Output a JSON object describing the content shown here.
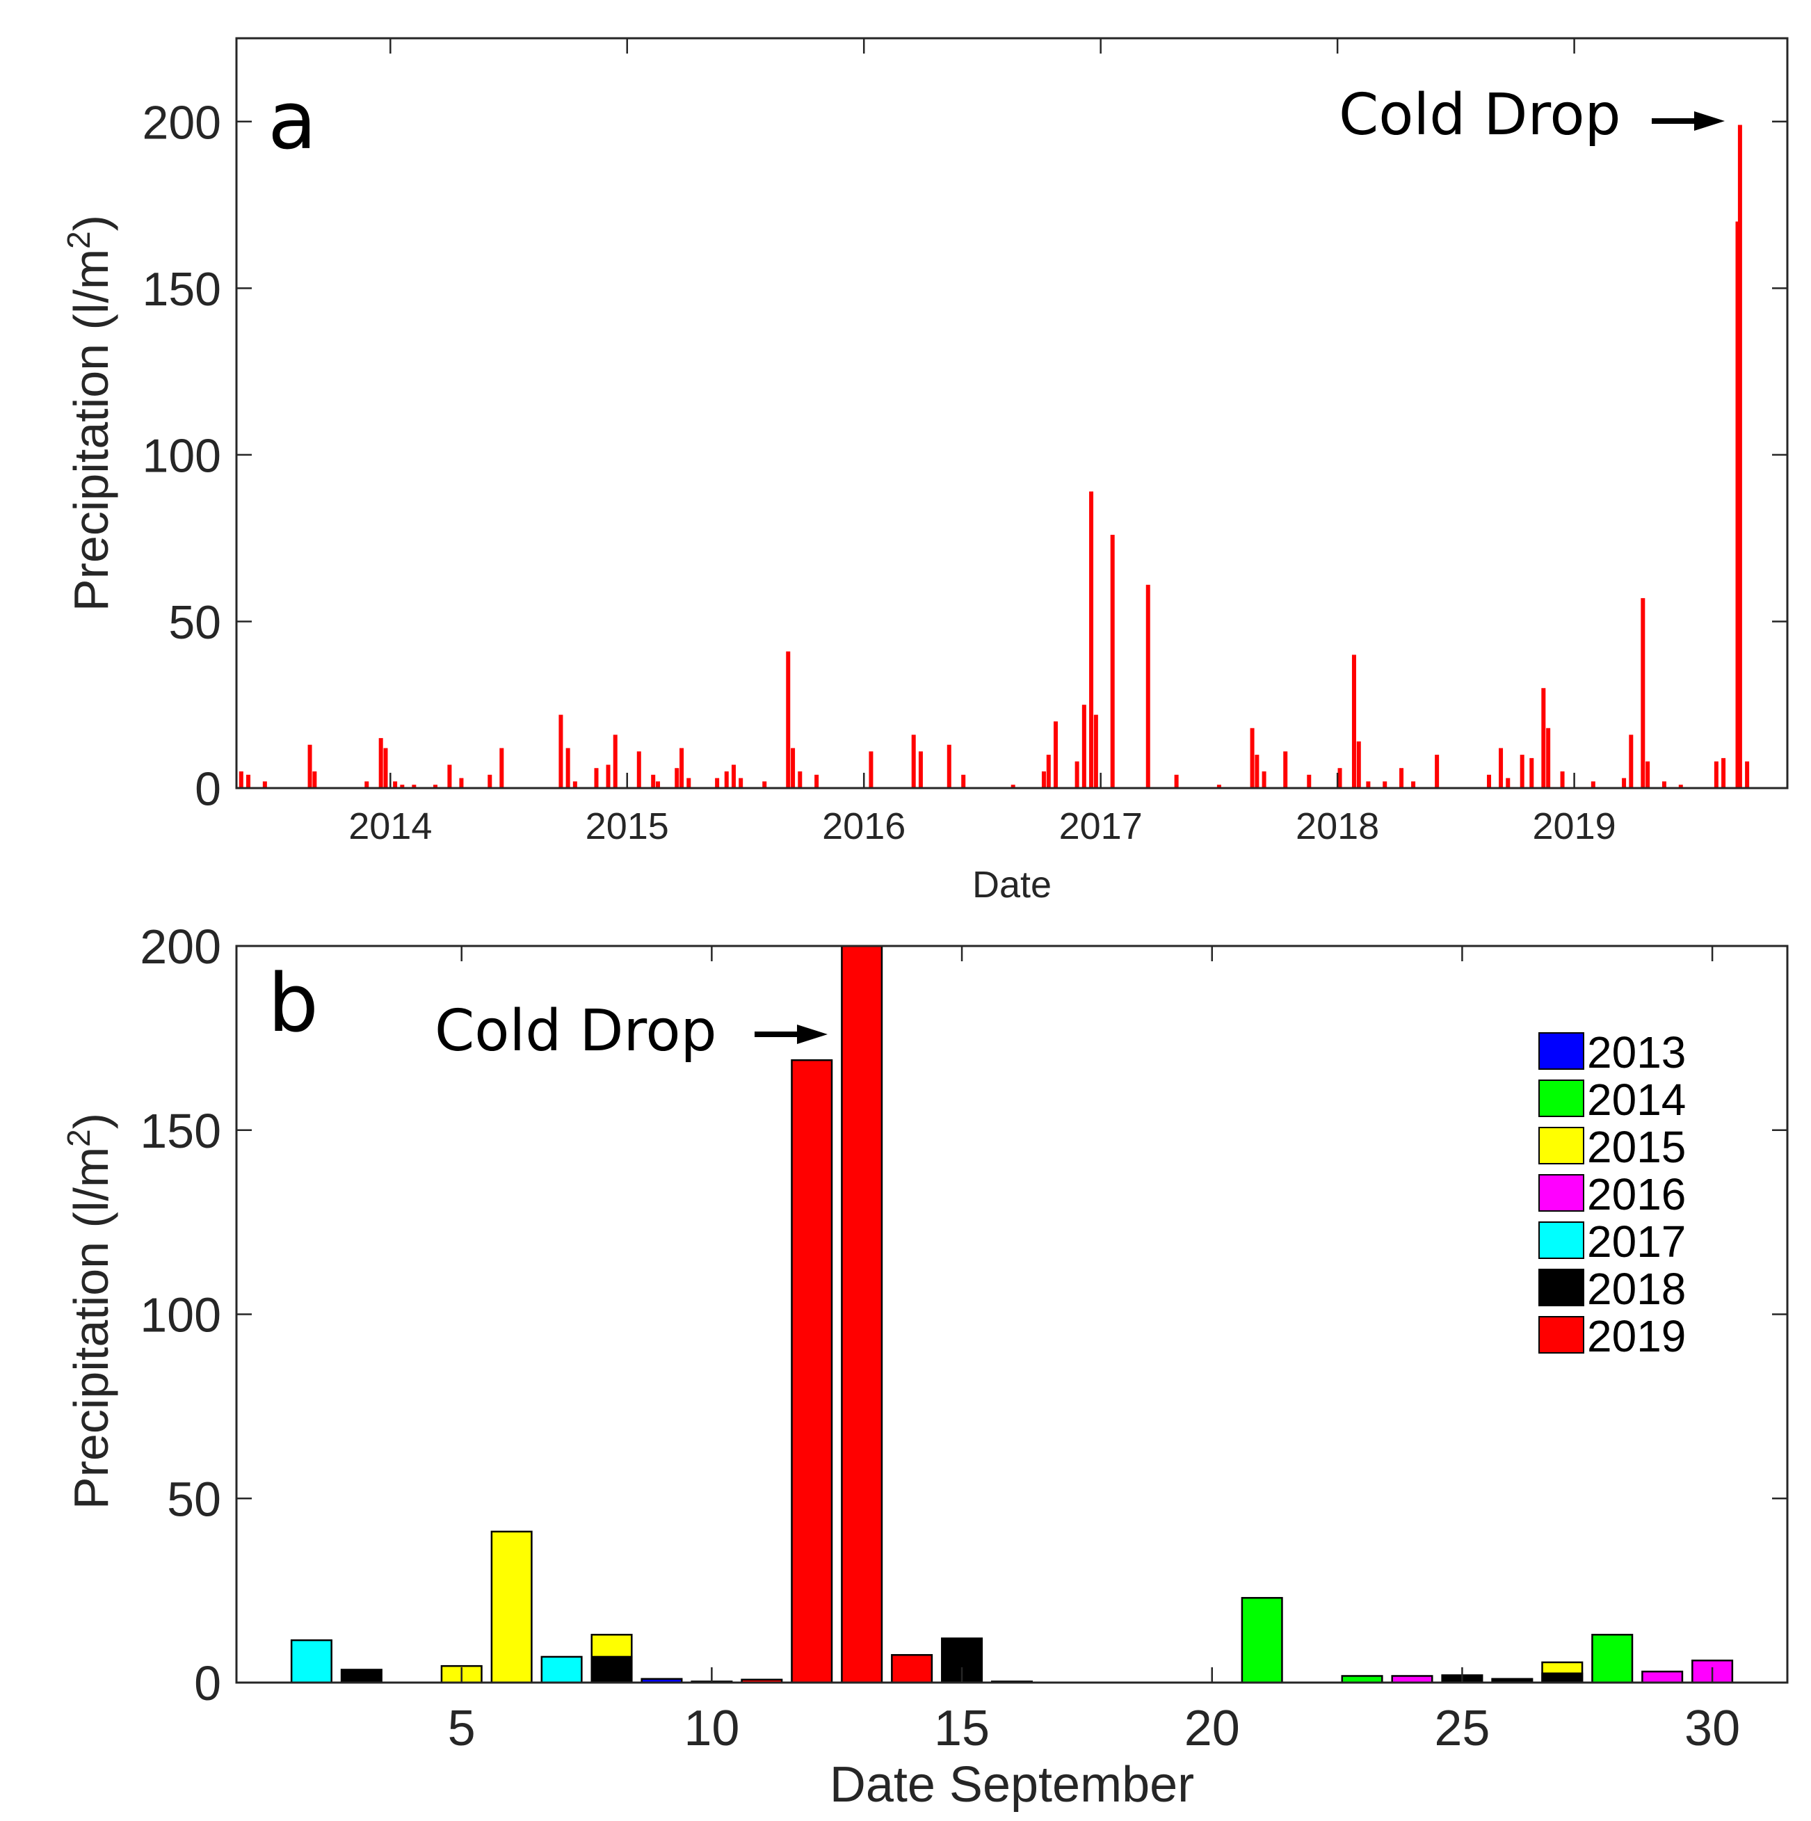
{
  "chart_data": [
    {
      "panel": "a",
      "type": "bar",
      "title": "",
      "xlabel": "Date",
      "ylabel": "Precipitation (l/m2)",
      "ylabel_main": "Precipitation (l/m",
      "ylabel_sup": "2",
      "ylabel_close": ")",
      "ylim": [
        0,
        225
      ],
      "xlim": [
        2013.35,
        2019.9
      ],
      "xticks": [
        2014,
        2015,
        2016,
        2017,
        2018,
        2019
      ],
      "xtick_labels": [
        "2014",
        "2015",
        "2016",
        "2017",
        "2018",
        "2019"
      ],
      "yticks": [
        0,
        50,
        100,
        150,
        200
      ],
      "ytick_labels": [
        "0",
        "50",
        "100",
        "150",
        "200"
      ],
      "series_color": "#ff0000",
      "annotation": "Cold Drop",
      "annotation_target": {
        "x": 2019.72,
        "y": 199
      },
      "points": [
        [
          2013.37,
          5
        ],
        [
          2013.4,
          4
        ],
        [
          2013.47,
          2
        ],
        [
          2013.66,
          13
        ],
        [
          2013.68,
          5
        ],
        [
          2013.9,
          2
        ],
        [
          2013.96,
          15
        ],
        [
          2013.98,
          12
        ],
        [
          2014.02,
          2
        ],
        [
          2014.05,
          1
        ],
        [
          2014.1,
          1
        ],
        [
          2014.19,
          1
        ],
        [
          2014.25,
          7
        ],
        [
          2014.3,
          3
        ],
        [
          2014.42,
          4
        ],
        [
          2014.47,
          12
        ],
        [
          2014.72,
          22
        ],
        [
          2014.75,
          12
        ],
        [
          2014.78,
          2
        ],
        [
          2014.87,
          6
        ],
        [
          2014.92,
          7
        ],
        [
          2014.95,
          16
        ],
        [
          2015.05,
          11
        ],
        [
          2015.11,
          4
        ],
        [
          2015.13,
          2
        ],
        [
          2015.21,
          6
        ],
        [
          2015.23,
          12
        ],
        [
          2015.26,
          3
        ],
        [
          2015.38,
          3
        ],
        [
          2015.42,
          5
        ],
        [
          2015.45,
          7
        ],
        [
          2015.48,
          3
        ],
        [
          2015.58,
          2
        ],
        [
          2015.68,
          41
        ],
        [
          2015.7,
          12
        ],
        [
          2015.73,
          5
        ],
        [
          2015.8,
          4
        ],
        [
          2016.03,
          11
        ],
        [
          2016.21,
          16
        ],
        [
          2016.24,
          11
        ],
        [
          2016.36,
          13
        ],
        [
          2016.42,
          4
        ],
        [
          2016.63,
          1
        ],
        [
          2016.76,
          5
        ],
        [
          2016.78,
          10
        ],
        [
          2016.81,
          20
        ],
        [
          2016.9,
          8
        ],
        [
          2016.93,
          25
        ],
        [
          2016.96,
          89
        ],
        [
          2016.98,
          22
        ],
        [
          2017.05,
          76
        ],
        [
          2017.2,
          61
        ],
        [
          2017.32,
          4
        ],
        [
          2017.5,
          1
        ],
        [
          2017.64,
          18
        ],
        [
          2017.66,
          10
        ],
        [
          2017.69,
          5
        ],
        [
          2017.78,
          11
        ],
        [
          2017.88,
          4
        ],
        [
          2018.01,
          6
        ],
        [
          2018.07,
          40
        ],
        [
          2018.09,
          14
        ],
        [
          2018.13,
          2
        ],
        [
          2018.2,
          2
        ],
        [
          2018.27,
          6
        ],
        [
          2018.32,
          2
        ],
        [
          2018.42,
          10
        ],
        [
          2018.64,
          4
        ],
        [
          2018.69,
          12
        ],
        [
          2018.72,
          3
        ],
        [
          2018.78,
          10
        ],
        [
          2018.82,
          9
        ],
        [
          2018.87,
          30
        ],
        [
          2018.89,
          18
        ],
        [
          2018.95,
          5
        ],
        [
          2019.08,
          2
        ],
        [
          2019.21,
          3
        ],
        [
          2019.24,
          16
        ],
        [
          2019.29,
          57
        ],
        [
          2019.31,
          8
        ],
        [
          2019.38,
          2
        ],
        [
          2019.45,
          1
        ],
        [
          2019.6,
          8
        ],
        [
          2019.63,
          9
        ],
        [
          2019.69,
          170
        ],
        [
          2019.7,
          199
        ],
        [
          2019.73,
          8
        ]
      ]
    },
    {
      "panel": "b",
      "type": "bar",
      "title": "",
      "xlabel": "Date September",
      "ylabel": "Precipitation (l/m2)",
      "ylabel_main": "Precipitation (l/m",
      "ylabel_sup": "2",
      "ylabel_close": ")",
      "ylim": [
        0,
        200
      ],
      "xlim": [
        0.5,
        31.5
      ],
      "xticks": [
        5,
        10,
        15,
        20,
        25,
        30
      ],
      "xtick_labels": [
        "5",
        "10",
        "15",
        "20",
        "25",
        "30"
      ],
      "yticks": [
        0,
        50,
        100,
        150,
        200
      ],
      "ytick_labels": [
        "0",
        "50",
        "100",
        "150",
        "200"
      ],
      "annotation": "Cold Drop",
      "annotation_target": {
        "x": 12,
        "y": 177
      },
      "legend": [
        {
          "label": "2013",
          "color": "#0000ff"
        },
        {
          "label": "2014",
          "color": "#00ff00"
        },
        {
          "label": "2015",
          "color": "#ffff00"
        },
        {
          "label": "2016",
          "color": "#ff00ff"
        },
        {
          "label": "2017",
          "color": "#00ffff"
        },
        {
          "label": "2018",
          "color": "#000000"
        },
        {
          "label": "2019",
          "color": "#ff0000"
        }
      ],
      "bars": [
        {
          "day": 2,
          "year": "2017",
          "value": 11.5
        },
        {
          "day": 3,
          "year": "2018",
          "value": 3.5
        },
        {
          "day": 5,
          "year": "2015",
          "value": 4.5
        },
        {
          "day": 6,
          "year": "2015",
          "value": 41
        },
        {
          "day": 7,
          "year": "2017",
          "value": 7
        },
        {
          "day": 8,
          "year": "2015",
          "value": 13
        },
        {
          "day": 8,
          "year": "2018",
          "value": 7
        },
        {
          "day": 9,
          "year": "2013",
          "value": 1
        },
        {
          "day": 10,
          "year": "2016",
          "value": 0.3
        },
        {
          "day": 11,
          "year": "2019",
          "value": 0.8
        },
        {
          "day": 12,
          "year": "2019",
          "value": 169
        },
        {
          "day": 13,
          "year": "2019",
          "value": 200
        },
        {
          "day": 14,
          "year": "2019",
          "value": 7.5
        },
        {
          "day": 15,
          "year": "2018",
          "value": 12
        },
        {
          "day": 16,
          "year": "2017",
          "value": 0.3
        },
        {
          "day": 21,
          "year": "2014",
          "value": 23
        },
        {
          "day": 23,
          "year": "2014",
          "value": 1.8
        },
        {
          "day": 24,
          "year": "2016",
          "value": 1.8
        },
        {
          "day": 25,
          "year": "2018",
          "value": 2
        },
        {
          "day": 26,
          "year": "2018",
          "value": 1
        },
        {
          "day": 27,
          "year": "2015",
          "value": 5.5
        },
        {
          "day": 27,
          "year": "2018",
          "value": 2.5
        },
        {
          "day": 28,
          "year": "2014",
          "value": 13
        },
        {
          "day": 29,
          "year": "2016",
          "value": 3
        },
        {
          "day": 30,
          "year": "2016",
          "value": 6
        }
      ]
    }
  ]
}
